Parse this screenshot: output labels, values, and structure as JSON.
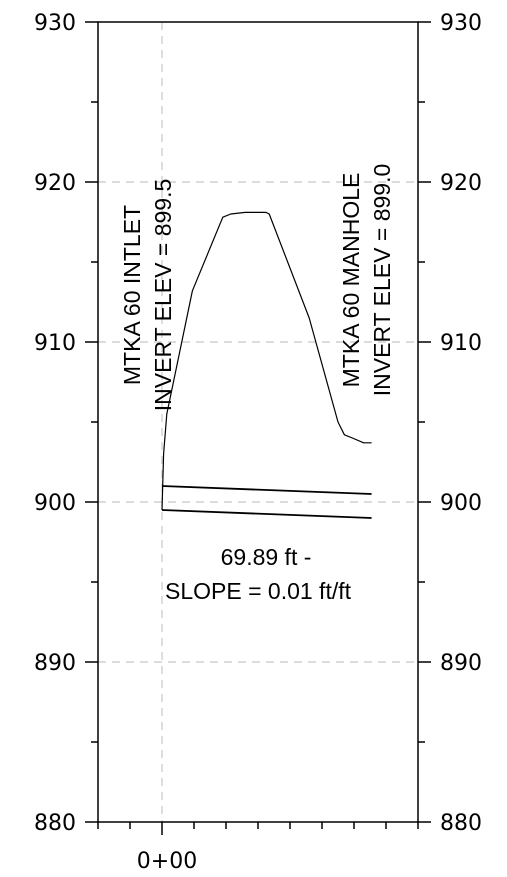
{
  "chart_data": {
    "type": "profile",
    "y_axis": {
      "range": [
        880,
        930
      ],
      "ticks": [
        930,
        920,
        910,
        900,
        890,
        880
      ],
      "labels": [
        "930",
        "920",
        "910",
        "900",
        "890",
        "880"
      ],
      "minor_step": 5
    },
    "x_axis": {
      "stations": [
        0
      ],
      "labels": [
        "0+00"
      ],
      "range": [
        -2,
        8
      ],
      "minor_step": 1
    },
    "grid": "dashed",
    "ground_profile": {
      "x": [
        0,
        0.05,
        0.15,
        0.95,
        1.9,
        2.15,
        2.6,
        3.25,
        3.35,
        4.6,
        5.5,
        5.7,
        5.95,
        6.3,
        6.55
      ],
      "y": [
        899.5,
        903.0,
        905.5,
        913.2,
        917.8,
        918.0,
        918.1,
        918.1,
        918.0,
        911.5,
        905.0,
        904.2,
        904.0,
        903.7,
        903.7
      ]
    },
    "pipe_top": {
      "x": [
        0,
        6.55
      ],
      "y": [
        901.0,
        900.5
      ]
    },
    "pipe_invert": {
      "x": [
        0,
        6.55
      ],
      "y": [
        899.5,
        899.0
      ]
    },
    "colors": {
      "lines": "#000000",
      "grid": "#c8c8c8"
    },
    "annotations": {
      "inlet_name": "MTKA 60 INTLET",
      "inlet_invert": "INVERT ELEV = 899.5",
      "manhole_name": "MTKA 60 MANHOLE",
      "manhole_invert": "INVERT ELEV = 899.0",
      "pipe_length": "69.89 ft -",
      "pipe_slope": "SLOPE = 0.01 ft/ft"
    }
  }
}
